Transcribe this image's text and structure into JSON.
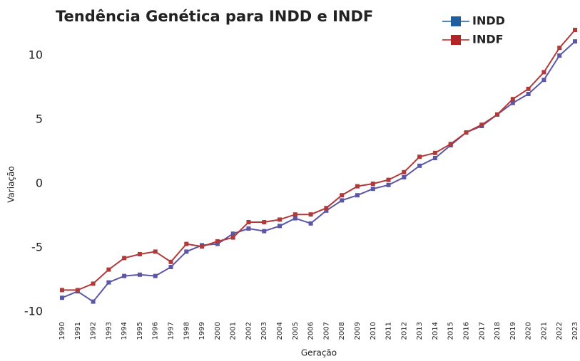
{
  "chart_data": {
    "type": "line",
    "title": "Tendência Genética para INDD e INDF",
    "x_label": "Geração",
    "y_label": "Variação",
    "categories": [
      "1990",
      "1991",
      "1992",
      "1993",
      "1994",
      "1995",
      "1996",
      "1997",
      "1998",
      "1999",
      "2000",
      "2001",
      "2002",
      "2003",
      "2004",
      "2005",
      "2006",
      "2007",
      "2008",
      "2009",
      "2010",
      "2011",
      "2012",
      "2013",
      "2014",
      "2015",
      "2016",
      "2017",
      "2018",
      "2019",
      "2020",
      "2021",
      "2022",
      "2023"
    ],
    "series": [
      {
        "name": "INDD",
        "color": "#5b57a6",
        "values": [
          -8.9,
          -8.4,
          -9.2,
          -7.7,
          -7.2,
          -7.1,
          -7.2,
          -6.5,
          -5.3,
          -4.8,
          -4.7,
          -3.9,
          -3.5,
          -3.7,
          -3.3,
          -2.7,
          -3.1,
          -2.1,
          -1.3,
          -0.9,
          -0.4,
          -0.1,
          0.5,
          1.4,
          2.0,
          3.0,
          4.0,
          4.5,
          5.4,
          6.3,
          7.0,
          8.1,
          10.0,
          11.1
        ]
      },
      {
        "name": "INDF",
        "color": "#b03a3a",
        "values": [
          -8.3,
          -8.3,
          -7.8,
          -6.7,
          -5.8,
          -5.5,
          -5.3,
          -6.1,
          -4.7,
          -4.9,
          -4.5,
          -4.2,
          -3.0,
          -3.0,
          -2.8,
          -2.4,
          -2.4,
          -1.9,
          -0.9,
          -0.2,
          0.0,
          0.3,
          0.9,
          2.1,
          2.4,
          3.1,
          4.0,
          4.6,
          5.4,
          6.6,
          7.4,
          8.7,
          10.6,
          12.0
        ]
      }
    ],
    "legend_colors": [
      "#1f5f9e",
      "#b32424"
    ],
    "ylim": [
      -10.5,
      12.5
    ],
    "yticks": [
      -10,
      -5,
      0,
      5,
      10
    ],
    "grid": false,
    "legend": "top-right"
  }
}
